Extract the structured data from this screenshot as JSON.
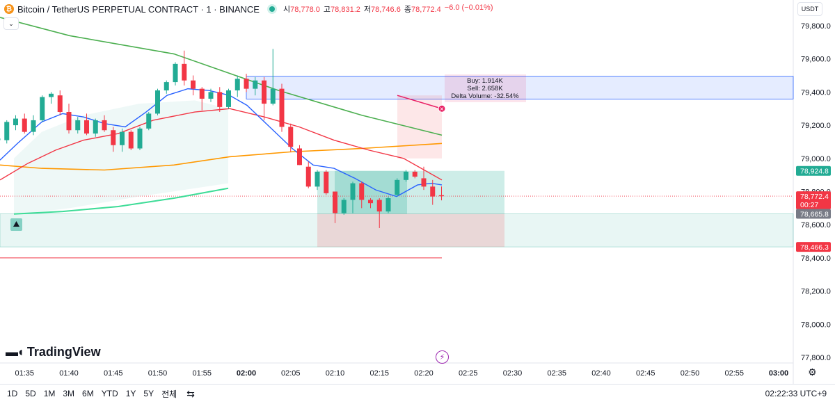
{
  "header": {
    "symbol_title": "Bitcoin / TetherUS PERPETUAL CONTRACT · 1 · BINANCE",
    "open_label": "시",
    "open_value": "78,778.0",
    "high_label": "고",
    "high_value": "78,831.2",
    "low_label": "저",
    "low_value": "78,746.6",
    "close_label": "종",
    "close_value": "78,772.4",
    "change": "−6.0 (−0.01%)",
    "currency": "USDT"
  },
  "brand": {
    "name": "TradingView"
  },
  "bottom_bar": {
    "ranges": [
      "1D",
      "5D",
      "1M",
      "3M",
      "6M",
      "YTD",
      "1Y",
      "5Y",
      "전체"
    ],
    "clock": "02:22:33 UTC+9"
  },
  "colors": {
    "up": "#22ab94",
    "down": "#f23645",
    "ema_fast": "#2962ff",
    "ema_mid": "#f23645",
    "ema_slow": "#ff9800",
    "trend": "#4caf50",
    "teal_line": "#3ddc97"
  },
  "chart_data": {
    "type": "candlestick",
    "y_range": [
      77800,
      79800
    ],
    "y_ticks": [
      {
        "v": 79800,
        "t": "79,800.0"
      },
      {
        "v": 79600,
        "t": "79,600.0"
      },
      {
        "v": 79400,
        "t": "79,400.0"
      },
      {
        "v": 79200,
        "t": "79,200.0"
      },
      {
        "v": 79000,
        "t": "79,000.0"
      },
      {
        "v": 78800,
        "t": "78,800.0"
      },
      {
        "v": 78600,
        "t": "78,600.0"
      },
      {
        "v": 78400,
        "t": "78,400.0"
      },
      {
        "v": 78200,
        "t": "78,200.0"
      },
      {
        "v": 78000,
        "t": "78,000.0"
      },
      {
        "v": 77800,
        "t": "77,800.0"
      }
    ],
    "x_ticks": [
      {
        "m": 95,
        "t": "01:35"
      },
      {
        "m": 100,
        "t": "01:40"
      },
      {
        "m": 105,
        "t": "01:45"
      },
      {
        "m": 110,
        "t": "01:50"
      },
      {
        "m": 115,
        "t": "01:55"
      },
      {
        "m": 120,
        "t": "02:00",
        "bold": true
      },
      {
        "m": 125,
        "t": "02:05"
      },
      {
        "m": 130,
        "t": "02:10"
      },
      {
        "m": 135,
        "t": "02:15"
      },
      {
        "m": 140,
        "t": "02:20"
      },
      {
        "m": 145,
        "t": "02:25"
      },
      {
        "m": 150,
        "t": "02:30"
      },
      {
        "m": 155,
        "t": "02:35"
      },
      {
        "m": 160,
        "t": "02:40"
      },
      {
        "m": 165,
        "t": "02:45"
      },
      {
        "m": 170,
        "t": "02:50"
      },
      {
        "m": 175,
        "t": "02:55"
      },
      {
        "m": 180,
        "t": "03:00",
        "bold": true
      }
    ],
    "candles": [
      {
        "m": 92,
        "o": 79110,
        "h": 79140,
        "l": 79080,
        "c": 79120
      },
      {
        "m": 93,
        "o": 79110,
        "h": 79230,
        "l": 79090,
        "c": 79220
      },
      {
        "m": 94,
        "o": 79200,
        "h": 79260,
        "l": 79170,
        "c": 79240
      },
      {
        "m": 95,
        "o": 79240,
        "h": 79270,
        "l": 79150,
        "c": 79160
      },
      {
        "m": 96,
        "o": 79160,
        "h": 79260,
        "l": 79140,
        "c": 79230
      },
      {
        "m": 97,
        "o": 79230,
        "h": 79380,
        "l": 79220,
        "c": 79370
      },
      {
        "m": 98,
        "o": 79370,
        "h": 79400,
        "l": 79330,
        "c": 79390
      },
      {
        "m": 99,
        "o": 79380,
        "h": 79410,
        "l": 79260,
        "c": 79280
      },
      {
        "m": 100,
        "o": 79280,
        "h": 79330,
        "l": 79150,
        "c": 79170
      },
      {
        "m": 101,
        "o": 79170,
        "h": 79250,
        "l": 79150,
        "c": 79230
      },
      {
        "m": 102,
        "o": 79230,
        "h": 79270,
        "l": 79140,
        "c": 79150
      },
      {
        "m": 103,
        "o": 79150,
        "h": 79240,
        "l": 79130,
        "c": 79230
      },
      {
        "m": 104,
        "o": 79230,
        "h": 79260,
        "l": 79160,
        "c": 79170
      },
      {
        "m": 105,
        "o": 79170,
        "h": 79190,
        "l": 79040,
        "c": 79080
      },
      {
        "m": 106,
        "o": 79080,
        "h": 79180,
        "l": 79040,
        "c": 79160
      },
      {
        "m": 107,
        "o": 79160,
        "h": 79170,
        "l": 79050,
        "c": 79060
      },
      {
        "m": 108,
        "o": 79060,
        "h": 79190,
        "l": 79050,
        "c": 79180
      },
      {
        "m": 109,
        "o": 79180,
        "h": 79280,
        "l": 79170,
        "c": 79270
      },
      {
        "m": 110,
        "o": 79270,
        "h": 79420,
        "l": 79260,
        "c": 79410
      },
      {
        "m": 111,
        "o": 79410,
        "h": 79470,
        "l": 79390,
        "c": 79460
      },
      {
        "m": 112,
        "o": 79460,
        "h": 79580,
        "l": 79440,
        "c": 79570
      },
      {
        "m": 113,
        "o": 79570,
        "h": 79650,
        "l": 79440,
        "c": 79470
      },
      {
        "m": 114,
        "o": 79470,
        "h": 79500,
        "l": 79380,
        "c": 79420
      },
      {
        "m": 115,
        "o": 79420,
        "h": 79430,
        "l": 79290,
        "c": 79360
      },
      {
        "m": 116,
        "o": 79360,
        "h": 79420,
        "l": 79340,
        "c": 79400
      },
      {
        "m": 117,
        "o": 79400,
        "h": 79430,
        "l": 79280,
        "c": 79310
      },
      {
        "m": 118,
        "o": 79310,
        "h": 79420,
        "l": 79300,
        "c": 79410
      },
      {
        "m": 119,
        "o": 79410,
        "h": 79500,
        "l": 79370,
        "c": 79480
      },
      {
        "m": 120,
        "o": 79480,
        "h": 79510,
        "l": 79400,
        "c": 79420
      },
      {
        "m": 121,
        "o": 79420,
        "h": 79490,
        "l": 79380,
        "c": 79470
      },
      {
        "m": 122,
        "o": 79470,
        "h": 79490,
        "l": 79230,
        "c": 79330
      },
      {
        "m": 123,
        "o": 79330,
        "h": 79660,
        "l": 79320,
        "c": 79420
      },
      {
        "m": 124,
        "o": 79420,
        "h": 79450,
        "l": 79160,
        "c": 79190
      },
      {
        "m": 125,
        "o": 79190,
        "h": 79210,
        "l": 79040,
        "c": 79070
      },
      {
        "m": 126,
        "o": 79060,
        "h": 79080,
        "l": 78960,
        "c": 78960
      },
      {
        "m": 127,
        "o": 78950,
        "h": 78980,
        "l": 78820,
        "c": 78830
      },
      {
        "m": 128,
        "o": 78830,
        "h": 78930,
        "l": 78810,
        "c": 78920
      },
      {
        "m": 129,
        "o": 78920,
        "h": 78930,
        "l": 78780,
        "c": 78790
      },
      {
        "m": 130,
        "o": 78800,
        "h": 78800,
        "l": 78610,
        "c": 78670
      },
      {
        "m": 131,
        "o": 78670,
        "h": 78760,
        "l": 78660,
        "c": 78750
      },
      {
        "m": 132,
        "o": 78750,
        "h": 78860,
        "l": 78670,
        "c": 78850
      },
      {
        "m": 133,
        "o": 78850,
        "h": 78860,
        "l": 78700,
        "c": 78750
      },
      {
        "m": 134,
        "o": 78750,
        "h": 78760,
        "l": 78700,
        "c": 78730
      },
      {
        "m": 135,
        "o": 78750,
        "h": 78760,
        "l": 78580,
        "c": 78680
      },
      {
        "m": 136,
        "o": 78680,
        "h": 78770,
        "l": 78670,
        "c": 78760
      },
      {
        "m": 137,
        "o": 78780,
        "h": 78880,
        "l": 78770,
        "c": 78870
      },
      {
        "m": 138,
        "o": 78870,
        "h": 78930,
        "l": 78860,
        "c": 78920
      },
      {
        "m": 139,
        "o": 78920,
        "h": 78930,
        "l": 78880,
        "c": 78890
      },
      {
        "m": 140,
        "o": 78880,
        "h": 78950,
        "l": 78810,
        "c": 78830
      },
      {
        "m": 141,
        "o": 78830,
        "h": 78870,
        "l": 78720,
        "c": 78770
      },
      {
        "m": 142,
        "o": 78778,
        "h": 78831,
        "l": 78747,
        "c": 78772
      }
    ],
    "annotation": {
      "buy": "Buy: 1.914K",
      "sell": "Sell: 2.658K",
      "delta": "Delta Volume: -32.54%"
    },
    "price_labels": [
      {
        "v": 78924.8,
        "t": "78,924.8",
        "kind": "green"
      },
      {
        "v": 78772.4,
        "t": "78,772.4",
        "sub": "00:27",
        "kind": "red"
      },
      {
        "v": 78665.8,
        "t": "78,665.8",
        "kind": "gray"
      },
      {
        "v": 78466.3,
        "t": "78,466.3",
        "kind": "red"
      }
    ]
  }
}
